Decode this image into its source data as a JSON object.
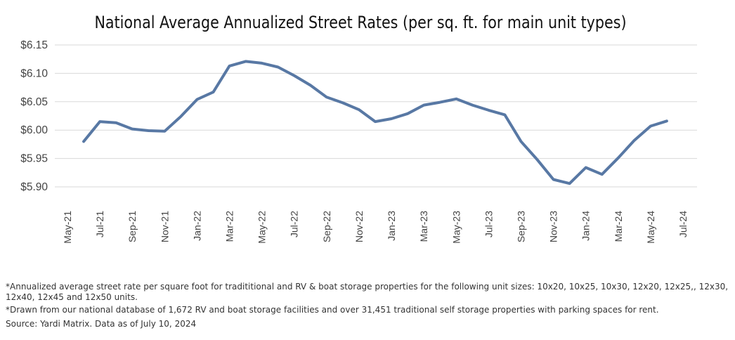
{
  "chart_data": {
    "type": "line",
    "title": "National Average Annualized Street Rates (per sq. ft. for main unit types)",
    "xlabel": "",
    "ylabel": "",
    "ylim": [
      5.87,
      6.15
    ],
    "y_ticks": [
      5.9,
      5.95,
      6.0,
      6.05,
      6.1,
      6.15
    ],
    "y_tick_labels": [
      "$5.90",
      "$5.95",
      "$6.00",
      "$6.05",
      "$6.10",
      "$6.15"
    ],
    "x_tick_labels": [
      "May-21",
      "Jul-21",
      "Sep-21",
      "Nov-21",
      "Jan-22",
      "Mar-22",
      "May-22",
      "Jul-22",
      "Sep-22",
      "Nov-22",
      "Jan-23",
      "Mar-23",
      "May-23",
      "Jul-23",
      "Sep-23",
      "Nov-23",
      "Jan-24",
      "Mar-24",
      "May-24",
      "Jul-24"
    ],
    "months": [
      "May-21",
      "Jun-21",
      "Jul-21",
      "Aug-21",
      "Sep-21",
      "Oct-21",
      "Nov-21",
      "Dec-21",
      "Jan-22",
      "Feb-22",
      "Mar-22",
      "Apr-22",
      "May-22",
      "Jun-22",
      "Jul-22",
      "Aug-22",
      "Sep-22",
      "Oct-22",
      "Nov-22",
      "Dec-22",
      "Jan-23",
      "Feb-23",
      "Mar-23",
      "Apr-23",
      "May-23",
      "Jun-23",
      "Jul-23",
      "Aug-23",
      "Sep-23",
      "Oct-23",
      "Nov-23",
      "Dec-23",
      "Jan-24",
      "Feb-24",
      "Mar-24",
      "Apr-24",
      "May-24",
      "Jun-24",
      "Jul-24"
    ],
    "grid": true,
    "legend": "none",
    "line_color": "#5878a4",
    "grid_color": "#d9d9d9",
    "series": [
      {
        "x": [
          "Jun-21",
          "Jul-21",
          "Aug-21",
          "Sep-21",
          "Oct-21",
          "Nov-21",
          "Dec-21",
          "Jan-22",
          "Feb-22",
          "Mar-22",
          "Apr-22",
          "May-22",
          "Jun-22",
          "Jul-22",
          "Aug-22",
          "Sep-22",
          "Oct-22",
          "Nov-22",
          "Dec-22",
          "Jan-23",
          "Feb-23",
          "Mar-23",
          "Apr-23",
          "May-23",
          "Jun-23",
          "Jul-23",
          "Aug-23",
          "Sep-23",
          "Oct-23",
          "Nov-23",
          "Dec-23",
          "Jan-24",
          "Feb-24",
          "Mar-24",
          "Apr-24",
          "May-24",
          "Jun-24"
        ],
        "values": [
          5.98,
          6.015,
          6.013,
          6.002,
          5.999,
          5.998,
          6.024,
          6.054,
          6.067,
          6.113,
          6.121,
          6.118,
          6.111,
          6.096,
          6.079,
          6.058,
          6.048,
          6.036,
          6.015,
          6.02,
          6.029,
          6.044,
          6.049,
          6.055,
          6.044,
          6.035,
          6.027,
          5.98,
          5.948,
          5.913,
          5.906,
          5.934,
          5.922,
          5.951,
          5.982,
          6.007,
          6.016
        ]
      }
    ]
  },
  "notes": {
    "line1": "*Annualized average street rate per square foot for tradititional and RV & boat storage properties for the following unit sizes: 10x20, 10x25, 10x30, 12x20, 12x25,, 12x30, 12x40, 12x45 and 12x50 units.",
    "line2": "*Drawn from our national database of 1,672 RV and boat storage facilities and over 31,451 traditional self storage properties with parking spaces for rent.",
    "line3": "Source: Yardi Matrix. Data as of July 10, 2024"
  }
}
